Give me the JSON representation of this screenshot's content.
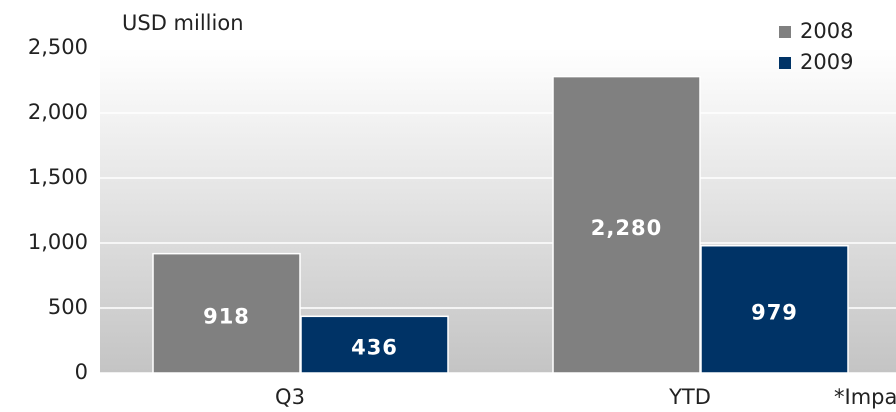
{
  "chart_data": {
    "type": "bar",
    "title": "USD million",
    "note": "*Impa",
    "categories": [
      "Q3",
      "YTD"
    ],
    "series": [
      {
        "name": "2008",
        "color": "#808080",
        "values": [
          918,
          2280
        ],
        "value_labels": [
          "918",
          "2,280"
        ]
      },
      {
        "name": "2009",
        "color": "#003366",
        "values": [
          436,
          979
        ],
        "value_labels": [
          "436",
          "979"
        ]
      }
    ],
    "ylim": [
      0,
      2500
    ],
    "yticks": [
      0,
      500,
      {
        "value": 1000,
        "label": "1,000"
      },
      {
        "value": 1500,
        "label": "1,500"
      },
      {
        "value": 2000,
        "label": "2,000"
      },
      {
        "value": 2500,
        "label": "2,500"
      }
    ],
    "grid": true,
    "legend": "top-right"
  }
}
